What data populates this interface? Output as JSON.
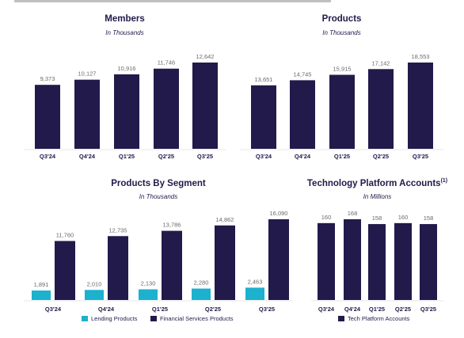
{
  "colors": {
    "navy": "#221a4a",
    "teal": "#1bb1cf",
    "text": "#221a4a",
    "label": "#6a6a6a"
  },
  "chart_data": [
    {
      "type": "bar",
      "title": "Members",
      "subtitle": "In Thousands",
      "categories": [
        "Q3'24",
        "Q4'24",
        "Q1'25",
        "Q2'25",
        "Q3'25"
      ],
      "value_labels": [
        "9,373",
        "10,127",
        "10,916",
        "11,746",
        "12,642"
      ],
      "series": [
        {
          "values": [
            9373,
            10127,
            10916,
            11746,
            12642
          ]
        }
      ],
      "ylim": [
        0,
        12642
      ]
    },
    {
      "type": "bar",
      "title": "Products",
      "subtitle": "In Thousands",
      "categories": [
        "Q3'24",
        "Q4'24",
        "Q1'25",
        "Q2'25",
        "Q3'25"
      ],
      "value_labels": [
        "13,651",
        "14,745",
        "15,915",
        "17,142",
        "18,553"
      ],
      "series": [
        {
          "values": [
            13651,
            14745,
            15915,
            17142,
            18553
          ]
        }
      ],
      "ylim": [
        0,
        18553
      ]
    },
    {
      "type": "bar",
      "title": "Products By Segment",
      "subtitle": "In Thousands",
      "categories": [
        "Q3'24",
        "Q4'24",
        "Q1'25",
        "Q2'25",
        "Q3'25"
      ],
      "series": [
        {
          "name": "Lending Products",
          "values": [
            1891,
            2010,
            2130,
            2280,
            2463
          ],
          "value_labels": [
            "1,891",
            "2,010",
            "2,130",
            "2,280",
            "2,463"
          ]
        },
        {
          "name": "Financial Services Products",
          "values": [
            11760,
            12735,
            13786,
            14862,
            16090
          ],
          "value_labels": [
            "11,760",
            "12,735",
            "13,786",
            "14,862",
            "16,090"
          ]
        }
      ],
      "ylim": [
        0,
        16090
      ]
    },
    {
      "type": "bar",
      "title": "Technology Platform Accounts",
      "title_superscript": "(1)",
      "subtitle": "In Millions",
      "categories": [
        "Q3'24",
        "Q4'24",
        "Q1'25",
        "Q2'25",
        "Q3'25"
      ],
      "value_labels": [
        "160",
        "168",
        "158",
        "160",
        "158"
      ],
      "series": [
        {
          "name": "Tech Platform Accounts",
          "values": [
            160,
            168,
            158,
            160,
            158
          ]
        }
      ],
      "ylim": [
        0,
        168
      ]
    }
  ]
}
